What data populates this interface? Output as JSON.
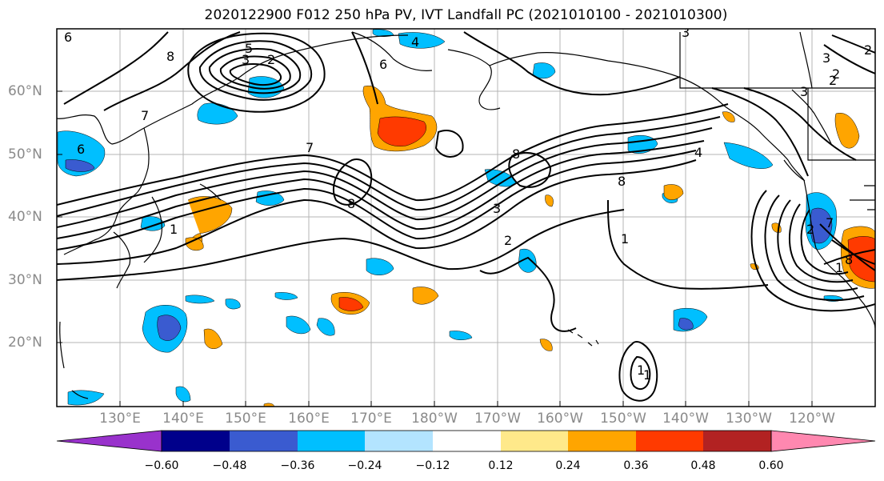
{
  "title": "2020122900 F012 250 hPa PV, IVT Landfall PC (2021010100 - 2021010300)",
  "lat_labels": [
    "60°N",
    "50°N",
    "40°N",
    "30°N",
    "20°N"
  ],
  "lon_labels": [
    "130°E",
    "140°E",
    "150°E",
    "160°E",
    "170°E",
    "180°W",
    "170°W",
    "160°W",
    "150°W",
    "140°W",
    "130°W",
    "120°W"
  ],
  "colorbar": {
    "ticks": [
      "−0.60",
      "−0.48",
      "−0.36",
      "−0.24",
      "−0.12",
      "0.12",
      "0.24",
      "0.36",
      "0.48",
      "0.60"
    ],
    "colors": [
      "#9932cc",
      "#00008b",
      "#3a5bd0",
      "#00bfff",
      "#b3e4ff",
      "#ffffff",
      "#ffe98a",
      "#ffa500",
      "#ff3a00",
      "#b22222",
      "#ff88b0"
    ]
  },
  "contour_labels": [
    "8",
    "5",
    "3",
    "2",
    "4",
    "6",
    "7",
    "6",
    "8",
    "7",
    "8",
    "8",
    "4",
    "3",
    "3",
    "2",
    "1",
    "1",
    "2",
    "3",
    "2",
    "1",
    "1",
    "7",
    "8",
    "3",
    "2",
    "6",
    "1",
    "2"
  ]
}
